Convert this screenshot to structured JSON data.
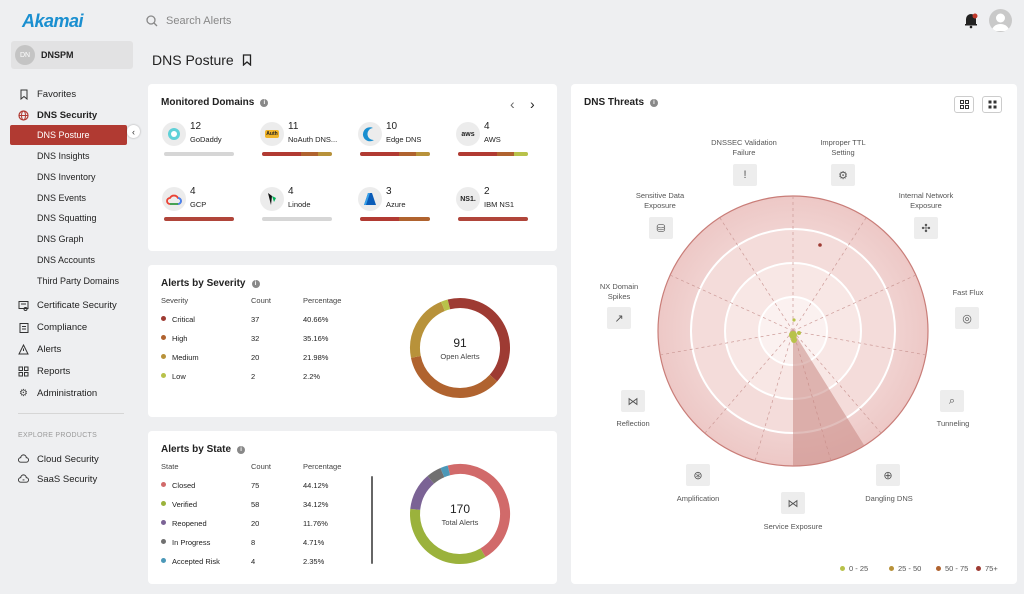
{
  "brand": {
    "logo_text": "Akamai",
    "accent": "#b13a32"
  },
  "search": {
    "placeholder": "Search Alerts"
  },
  "account": {
    "initials": "DN",
    "name": "DNSPM"
  },
  "sidebar": {
    "favorites": "Favorites",
    "dns_security": "DNS Security",
    "dns_items": [
      "DNS Posture",
      "DNS Insights",
      "DNS Inventory",
      "DNS Events",
      "DNS Squatting",
      "DNS Graph",
      "DNS Accounts",
      "Third Party Domains"
    ],
    "certificate_security": "Certificate Security",
    "compliance": "Compliance",
    "alerts": "Alerts",
    "reports": "Reports",
    "administration": "Administration",
    "explore_heading": "EXPLORE PRODUCTS",
    "cloud_security": "Cloud Security",
    "saas_security": "SaaS Security"
  },
  "page": {
    "title": "DNS Posture"
  },
  "domains": {
    "title": "Monitored Domains",
    "items": [
      {
        "count": "12",
        "name": "GoDaddy",
        "logo": "godaddy-icon"
      },
      {
        "count": "11",
        "name": "NoAuth DNS...",
        "logo": "noauth-icon"
      },
      {
        "count": "10",
        "name": "Edge DNS",
        "logo": "edgedns-icon"
      },
      {
        "count": "4",
        "name": "AWS",
        "logo": "aws-icon",
        "logo_text": "aws"
      },
      {
        "count": "4",
        "name": "GCP",
        "logo": "gcp-icon"
      },
      {
        "count": "4",
        "name": "Linode",
        "logo": "linode-icon"
      },
      {
        "count": "3",
        "name": "Azure",
        "logo": "azure-icon"
      },
      {
        "count": "2",
        "name": "IBM NS1",
        "logo": "ns1-icon",
        "logo_text": "NS1."
      }
    ]
  },
  "severity": {
    "title": "Alerts by Severity",
    "headers": [
      "Severity",
      "Count",
      "Percentage"
    ],
    "rows": [
      {
        "label": "Critical",
        "count": "37",
        "pct": "40.66%",
        "color": "#9e3b33",
        "value": 37
      },
      {
        "label": "High",
        "count": "32",
        "pct": "35.16%",
        "color": "#b0632f",
        "value": 32
      },
      {
        "label": "Medium",
        "count": "20",
        "pct": "21.98%",
        "color": "#b8923a",
        "value": 20
      },
      {
        "label": "Low",
        "count": "2",
        "pct": "2.2%",
        "color": "#b8c24a",
        "value": 2
      }
    ],
    "total": "91",
    "total_label": "Open Alerts"
  },
  "state": {
    "title": "Alerts by State",
    "headers": [
      "State",
      "Count",
      "Percentage"
    ],
    "rows": [
      {
        "label": "Closed",
        "count": "75",
        "pct": "44.12%",
        "color": "#d16a6a",
        "value": 75
      },
      {
        "label": "Verified",
        "count": "58",
        "pct": "34.12%",
        "color": "#9bb23c",
        "value": 58
      },
      {
        "label": "Reopened",
        "count": "20",
        "pct": "11.76%",
        "color": "#7b6395",
        "value": 20
      },
      {
        "label": "In Progress",
        "count": "8",
        "pct": "4.71%",
        "color": "#707070",
        "value": 8
      },
      {
        "label": "Accepted Risk",
        "count": "4",
        "pct": "2.35%",
        "color": "#4b98b8",
        "value": 4
      }
    ],
    "total": "170",
    "total_label": "Total Alerts"
  },
  "threats": {
    "title": "DNS Threats",
    "categories": [
      {
        "label": "DNSSEC Validation Failure",
        "icon": "alert-circle-icon"
      },
      {
        "label": "Improper TTL Setting",
        "icon": "gear-icon"
      },
      {
        "label": "Internal Network Exposure",
        "icon": "network-icon"
      },
      {
        "label": "Fast Flux",
        "icon": "flux-icon"
      },
      {
        "label": "Tunneling",
        "icon": "tunnel-search-icon"
      },
      {
        "label": "Dangling DNS",
        "icon": "globe-icon"
      },
      {
        "label": "Service Exposure",
        "icon": "share-icon"
      },
      {
        "label": "Amplification",
        "icon": "zoom-icon"
      },
      {
        "label": "Reflection",
        "icon": "reflect-icon"
      },
      {
        "label": "NX Domain Spikes",
        "icon": "trend-up-icon"
      },
      {
        "label": "Sensitive Data Exposure",
        "icon": "database-lock-icon"
      }
    ],
    "legend": [
      {
        "label": "0 - 25",
        "color": "#b8c24a"
      },
      {
        "label": "25 - 50",
        "color": "#b8923a"
      },
      {
        "label": "50 - 75",
        "color": "#b0632f"
      },
      {
        "label": "75+",
        "color": "#9e3b33"
      }
    ]
  }
}
